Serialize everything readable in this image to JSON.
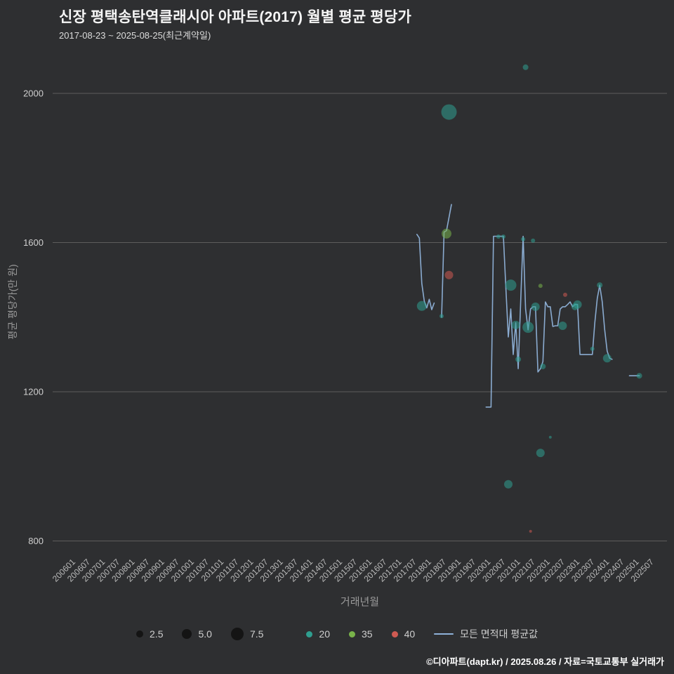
{
  "header": {
    "title": "신장 평택송탄역클래시아 아파트(2017) 월별 평균 평당가",
    "subtitle": "2017-08-23 ~ 2025-08-25(최근계약일)"
  },
  "footer": {
    "credit": "©디아파트(dapt.kr) / 2025.08.26 / 자료=국토교통부 실거래가"
  },
  "chart_data": {
    "type": "scatter",
    "title": "신장 평택송탄역클래시아 아파트(2017) 월별 평균 평당가",
    "xlabel": "거래년월",
    "ylabel": "평균 평당가(만 원)",
    "ylim": [
      700,
      2150
    ],
    "yticks": [
      800,
      1200,
      1600,
      2000
    ],
    "grid": "horizontal-only",
    "x_ticks": [
      "200601",
      "200607",
      "200701",
      "200707",
      "200801",
      "200807",
      "200901",
      "200907",
      "201001",
      "201007",
      "201101",
      "201107",
      "201201",
      "201207",
      "201301",
      "201307",
      "201401",
      "201407",
      "201501",
      "201507",
      "201601",
      "201607",
      "201701",
      "201707",
      "201801",
      "201807",
      "201901",
      "201907",
      "202001",
      "202007",
      "202101",
      "202107",
      "202201",
      "202207",
      "202301",
      "202307",
      "202401",
      "202407",
      "202501",
      "202507"
    ],
    "colors": {
      "background": "#2e2f31",
      "grid": "#5d5d5d",
      "xtick_text": "#b9b9b9",
      "ytick_text": "#d0d0d0",
      "size": "#141414",
      "s20": "#2f9e8f",
      "s35": "#79b34a",
      "s40": "#cf5a52",
      "avg": "#8fb2d9"
    },
    "series": [
      {
        "name": "20",
        "type": "scatter",
        "color": "#2f9e8f",
        "points": [
          {
            "month": "201709",
            "value": 1430,
            "size": 7
          },
          {
            "month": "201805",
            "value": 1403,
            "size": 3
          },
          {
            "month": "201808",
            "value": 1950,
            "size": 11
          },
          {
            "month": "202004",
            "value": 1616,
            "size": 3
          },
          {
            "month": "202006",
            "value": 1616,
            "size": 3
          },
          {
            "month": "202008",
            "value": 952,
            "size": 6
          },
          {
            "month": "202009",
            "value": 1486,
            "size": 8
          },
          {
            "month": "202011",
            "value": 1379,
            "size": 6
          },
          {
            "month": "202012",
            "value": 1287,
            "size": 4
          },
          {
            "month": "202102",
            "value": 1609,
            "size": 3
          },
          {
            "month": "202103",
            "value": 2070,
            "size": 4
          },
          {
            "month": "202104",
            "value": 1373,
            "size": 8
          },
          {
            "month": "202106",
            "value": 1605,
            "size": 3
          },
          {
            "month": "202107",
            "value": 1428,
            "size": 6
          },
          {
            "month": "202109",
            "value": 1036,
            "size": 6
          },
          {
            "month": "202110",
            "value": 1268,
            "size": 4
          },
          {
            "month": "202201",
            "value": 1078,
            "size": 2
          },
          {
            "month": "202206",
            "value": 1377,
            "size": 6
          },
          {
            "month": "202211",
            "value": 1428,
            "size": 5
          },
          {
            "month": "202212",
            "value": 1434,
            "size": 6
          },
          {
            "month": "202306",
            "value": 1315,
            "size": 3
          },
          {
            "month": "202309",
            "value": 1486,
            "size": 4
          },
          {
            "month": "202312",
            "value": 1290,
            "size": 6
          },
          {
            "month": "202501",
            "value": 1243,
            "size": 4
          }
        ]
      },
      {
        "name": "35",
        "type": "scatter",
        "color": "#79b34a",
        "points": [
          {
            "month": "201807",
            "value": 1624,
            "size": 7
          },
          {
            "month": "202109",
            "value": 1484,
            "size": 3
          }
        ]
      },
      {
        "name": "40",
        "type": "scatter",
        "color": "#cf5a52",
        "points": [
          {
            "month": "201808",
            "value": 1513,
            "size": 6
          },
          {
            "month": "202105",
            "value": 826,
            "size": 2
          },
          {
            "month": "202207",
            "value": 1460,
            "size": 3
          }
        ]
      },
      {
        "name": "모든 면적대 평균값",
        "type": "line",
        "color": "#8fb2d9",
        "segments": [
          [
            [
              "201707",
              1622
            ],
            [
              "201708",
              1612
            ],
            [
              "201709",
              1490
            ],
            [
              "201710",
              1443
            ],
            [
              "201711",
              1425
            ],
            [
              "201712",
              1448
            ],
            [
              "201801",
              1420
            ],
            [
              "201802",
              1438
            ]
          ],
          [
            [
              "201805",
              1400
            ],
            [
              "201806",
              1628
            ],
            [
              "201807",
              1632
            ],
            [
              "201809",
              1702
            ]
          ],
          [
            [
              "201911",
              1159
            ],
            [
              "202001",
              1159
            ],
            [
              "202002",
              1617
            ],
            [
              "202006",
              1617
            ],
            [
              "202007",
              1479
            ],
            [
              "202008",
              1347
            ],
            [
              "202009",
              1422
            ],
            [
              "202010",
              1300
            ],
            [
              "202011",
              1385
            ],
            [
              "202012",
              1262
            ],
            [
              "202101",
              1441
            ],
            [
              "202102",
              1617
            ],
            [
              "202103",
              1422
            ],
            [
              "202104",
              1366
            ],
            [
              "202105",
              1422
            ],
            [
              "202106",
              1428
            ],
            [
              "202107",
              1428
            ],
            [
              "202108",
              1253
            ],
            [
              "202109",
              1262
            ],
            [
              "202110",
              1281
            ],
            [
              "202111",
              1441
            ],
            [
              "202112",
              1428
            ],
            [
              "202201",
              1428
            ],
            [
              "202202",
              1375
            ],
            [
              "202203",
              1377
            ],
            [
              "202204",
              1377
            ],
            [
              "202205",
              1422
            ],
            [
              "202206",
              1428
            ],
            [
              "202207",
              1428
            ],
            [
              "202208",
              1434
            ],
            [
              "202209",
              1441
            ],
            [
              "202210",
              1428
            ],
            [
              "202211",
              1434
            ],
            [
              "202212",
              1434
            ],
            [
              "202301",
              1300
            ],
            [
              "202302",
              1300
            ],
            [
              "202303",
              1300
            ],
            [
              "202304",
              1300
            ],
            [
              "202305",
              1300
            ],
            [
              "202306",
              1300
            ],
            [
              "202307",
              1385
            ],
            [
              "202308",
              1450
            ],
            [
              "202309",
              1486
            ],
            [
              "202310",
              1441
            ],
            [
              "202311",
              1366
            ],
            [
              "202312",
              1309
            ],
            [
              "202401",
              1290
            ],
            [
              "202402",
              1287
            ]
          ],
          [
            [
              "202409",
              1243
            ],
            [
              "202501",
              1243
            ]
          ]
        ]
      }
    ],
    "legend": {
      "sizes": [
        "2.5",
        "5.0",
        "7.5"
      ],
      "entries": [
        "20",
        "35",
        "40",
        "모든 면적대 평균값"
      ],
      "position": "bottom"
    }
  }
}
